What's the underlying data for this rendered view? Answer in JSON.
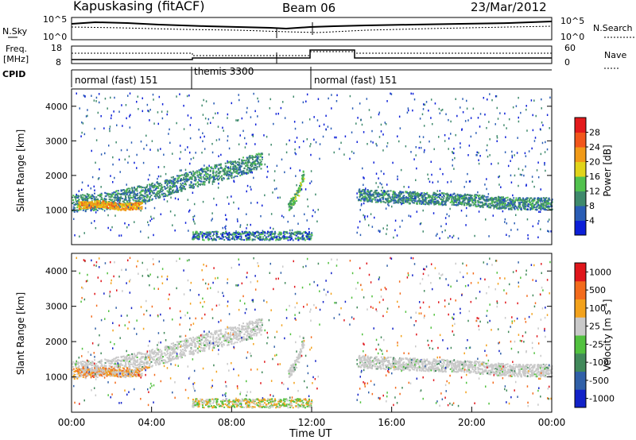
{
  "header": {
    "station": "Kapuskasing (fitACF)",
    "beam": "Beam 06",
    "date": "23/Mar/2012"
  },
  "panels": {
    "nsky": {
      "label": "N.Sky",
      "ticks_right": [
        "10^5",
        "10^0"
      ],
      "ticks_left": [
        "10^5",
        "10^0"
      ],
      "legend": "N.Search"
    },
    "freq": {
      "label_top": "Freq.",
      "label_unit": "[MHz]",
      "ticks_left": [
        "18",
        "8"
      ],
      "ticks_right": [
        "60",
        "0"
      ],
      "legend": "Nave"
    },
    "cpid": {
      "label": "CPID",
      "segments": [
        {
          "text": "normal (fast) 151",
          "start_h": 0,
          "end_h": 6
        },
        {
          "text": "themis 3300",
          "start_h": 6,
          "end_h": 12
        },
        {
          "text": "normal (fast) 151",
          "start_h": 12,
          "end_h": 24
        }
      ]
    }
  },
  "colorbars": {
    "power": {
      "label": "Power [dB]",
      "ticks": [
        "28",
        "24",
        "20",
        "16",
        "12",
        "8",
        "4"
      ],
      "colors": [
        "#0c1fd8",
        "#2a5db5",
        "#3f8a6c",
        "#52c24e",
        "#e1d41a",
        "#f19a18",
        "#f2561b",
        "#e31a1c"
      ]
    },
    "velocity": {
      "label": "Velocity [m s",
      "label_sup": "-1",
      "label_end": "]",
      "ticks": [
        "1000",
        "500",
        "100",
        "25",
        "-25",
        "-100",
        "-500",
        "-1000"
      ],
      "colors": [
        "#1222c8",
        "#3160a8",
        "#41895a",
        "#52c13f",
        "#c9c9c9",
        "#f3a21c",
        "#f36b1c",
        "#e0161b"
      ]
    }
  },
  "chart_data": [
    {
      "type": "heatmap",
      "name": "power",
      "ylabel": "Slant Range [km]",
      "ylim": [
        0,
        4500
      ],
      "xlim": [
        0,
        24
      ],
      "yticks": [
        "1000",
        "2000",
        "3000",
        "4000"
      ],
      "value_label": "Power [dB]",
      "value_range": [
        0,
        30
      ],
      "bands": [
        {
          "x": [
            0,
            2,
            4,
            6,
            8,
            9.5
          ],
          "y": [
            1200,
            1300,
            1550,
            1900,
            2200,
            2450
          ],
          "width": 500,
          "value": 8
        },
        {
          "x": [
            14.3,
            16,
            18,
            20,
            22,
            24
          ],
          "y": [
            1450,
            1400,
            1350,
            1300,
            1200,
            1200
          ],
          "width": 350,
          "value": 8
        },
        {
          "x": [
            0.3,
            1.5,
            2.5,
            3.5
          ],
          "y": [
            1150,
            1200,
            1100,
            1150
          ],
          "width": 200,
          "value": 20
        },
        {
          "x": [
            10.8,
            11.3,
            11.6
          ],
          "y": [
            1100,
            1500,
            2100
          ],
          "width": 300,
          "value": 12
        }
      ]
    },
    {
      "type": "heatmap",
      "name": "velocity",
      "ylabel": "Slant Range [km]",
      "ylim": [
        0,
        4500
      ],
      "xlim": [
        0,
        24
      ],
      "xlabel": "Time UT",
      "xticks": [
        "00:00",
        "04:00",
        "08:00",
        "12:00",
        "16:00",
        "20:00",
        "00:00"
      ],
      "yticks": [
        "1000",
        "2000",
        "3000",
        "4000"
      ],
      "value_label": "Velocity [m s-1]",
      "value_range": [
        -1000,
        1000
      ]
    }
  ]
}
